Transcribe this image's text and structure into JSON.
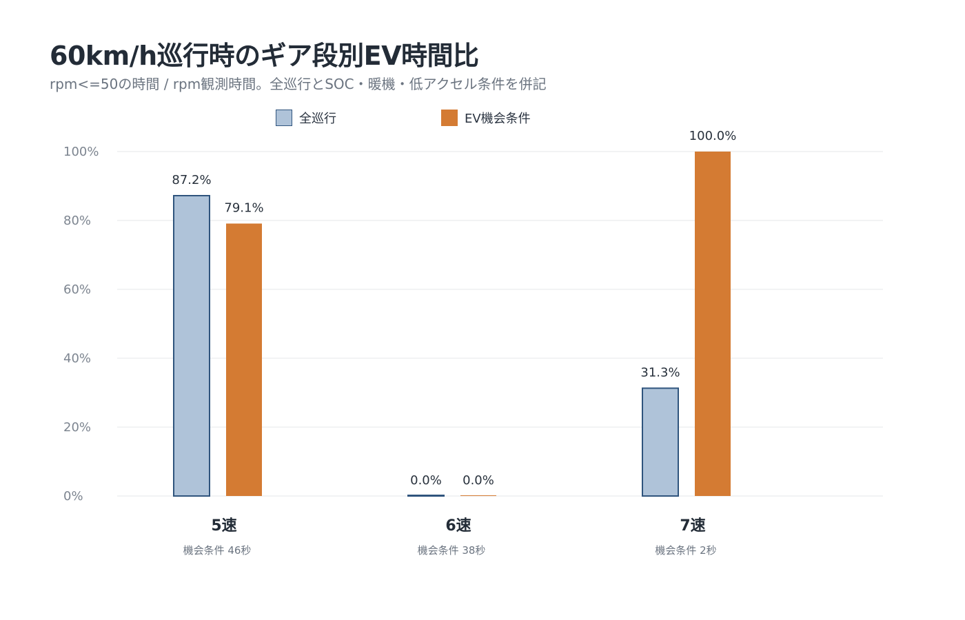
{
  "header": {
    "title": "60km/h巡行時のギア段別EV時間比",
    "subtitle": "rpm<=50の時間 / rpm観測時間。全巡行とSOC・暖機・低アクセル条件を併記"
  },
  "colors": {
    "series_all_fill": "#afc3d9",
    "series_all_stroke": "#2f547d",
    "series_ev_fill": "#d47b33",
    "grid": "#e4e7ea"
  },
  "chart_data": {
    "type": "bar",
    "title": "60km/h巡行時のギア段別EV時間比",
    "subtitle": "rpm<=50の時間 / rpm観測時間。全巡行とSOC・暖機・低アクセル条件を併記",
    "categories": [
      "5速",
      "6速",
      "7速"
    ],
    "category_notes": [
      "機会条件 46秒",
      "機会条件 38秒",
      "機会条件 2秒"
    ],
    "series": [
      {
        "name": "全巡行",
        "values": [
          87.2,
          0.0,
          31.3
        ],
        "labels": [
          "87.2%",
          "0.0%",
          "31.3%"
        ]
      },
      {
        "name": "EV機会条件",
        "values": [
          79.1,
          0.0,
          100.0
        ],
        "labels": [
          "79.1%",
          "0.0%",
          "100.0%"
        ]
      }
    ],
    "ylim": [
      0,
      100
    ],
    "yticks": [
      0,
      20,
      40,
      60,
      80,
      100
    ],
    "ytick_labels": [
      "0%",
      "20%",
      "40%",
      "60%",
      "80%",
      "100%"
    ],
    "grid": true,
    "legend": "top"
  }
}
